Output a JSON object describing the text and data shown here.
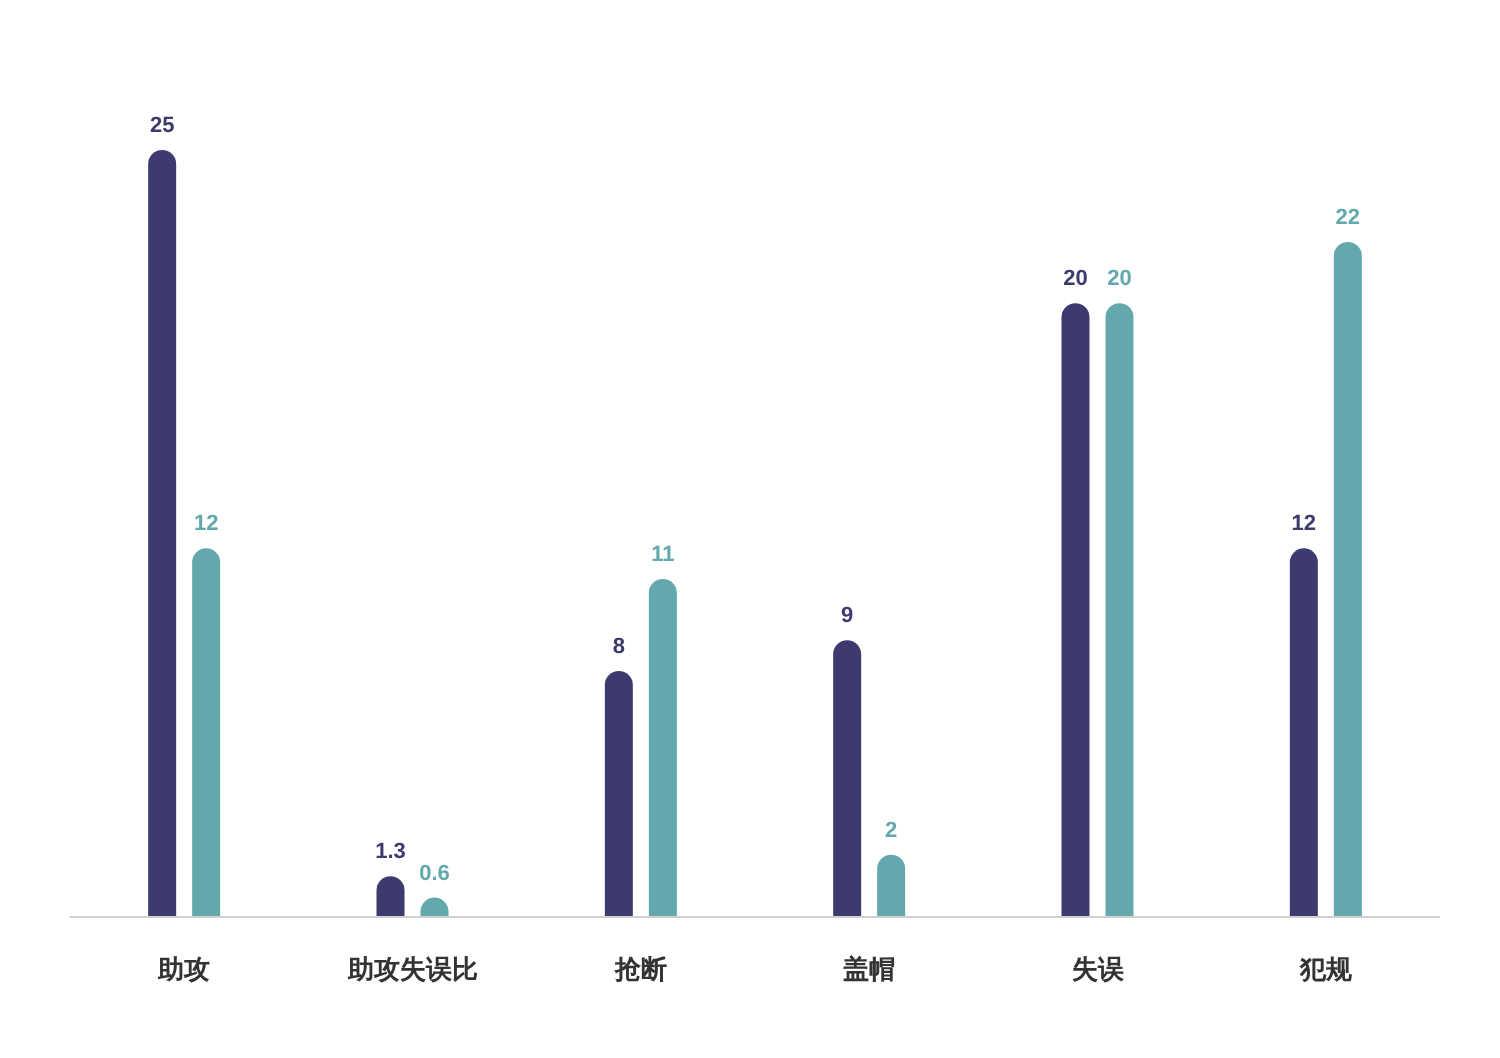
{
  "chart_data": {
    "type": "bar",
    "categories": [
      "助攻",
      "助攻失误比",
      "抢断",
      "盖帽",
      "失误",
      "犯规"
    ],
    "series": [
      {
        "color": "#3c3a6f",
        "values": [
          25,
          1.3,
          8,
          9,
          20,
          12
        ]
      },
      {
        "color": "#62a8ad",
        "values": [
          12,
          0.6,
          11,
          2,
          20,
          22
        ]
      }
    ],
    "data_labels": true
  }
}
